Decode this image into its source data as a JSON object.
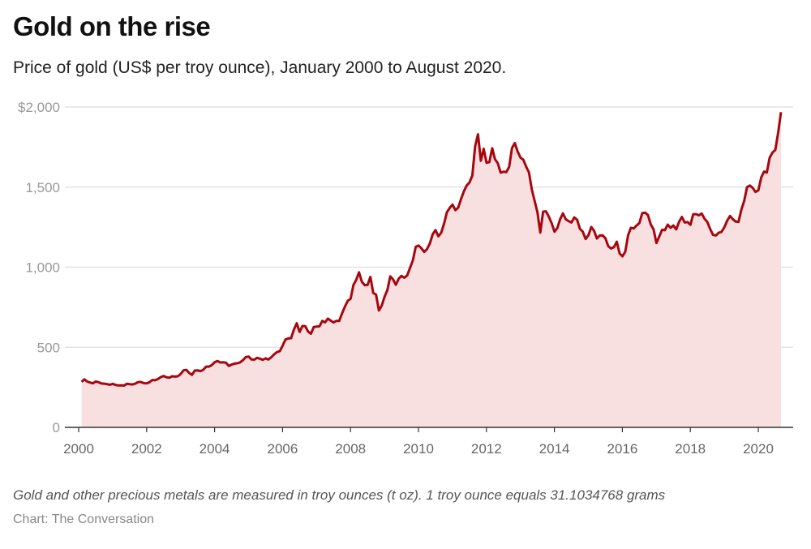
{
  "title": "Gold on the rise",
  "subtitle": "Price of gold (US$ per troy ounce), January 2000 to August 2020.",
  "note": "Gold and other precious metals are measured in troy ounces (t oz). 1 troy ounce equals 31.1034768 grams",
  "source": "Chart: The Conversation",
  "chart_data": {
    "type": "area",
    "title": "Gold on the rise",
    "subtitle": "Price of gold (US$ per troy ounce), January 2000 to August 2020.",
    "xlabel": "",
    "ylabel": "",
    "x_start": "2000-01",
    "x_frequency": "monthly",
    "xlim": [
      2000,
      2020.8
    ],
    "ylim": [
      0,
      2000
    ],
    "x_ticks": [
      "2000",
      "2002",
      "2004",
      "2006",
      "2008",
      "2010",
      "2012",
      "2014",
      "2016",
      "2018",
      "2020"
    ],
    "y_ticks": [
      "0",
      "500",
      "1,000",
      "1,500",
      "$2,000"
    ],
    "y_tick_values": [
      0,
      500,
      1000,
      1500,
      2000
    ],
    "grid": "horizontal",
    "line_color": "#a8060f",
    "fill_color": "#f9e0e0",
    "values": [
      284,
      300,
      286,
      280,
      275,
      286,
      282,
      274,
      273,
      270,
      266,
      272,
      265,
      262,
      263,
      261,
      272,
      270,
      268,
      273,
      283,
      283,
      276,
      275,
      282,
      296,
      294,
      302,
      314,
      321,
      313,
      310,
      319,
      317,
      319,
      333,
      356,
      359,
      340,
      328,
      355,
      356,
      351,
      360,
      379,
      379,
      389,
      407,
      414,
      405,
      406,
      404,
      384,
      392,
      398,
      400,
      406,
      420,
      439,
      442,
      424,
      423,
      434,
      429,
      422,
      431,
      424,
      438,
      456,
      470,
      476,
      510,
      549,
      555,
      557,
      610,
      650,
      596,
      633,
      632,
      598,
      585,
      627,
      629,
      631,
      665,
      655,
      679,
      667,
      655,
      665,
      665,
      712,
      754,
      790,
      803,
      889,
      922,
      968,
      909,
      888,
      889,
      939,
      839,
      829,
      730,
      760,
      816,
      858,
      943,
      924,
      890,
      928,
      946,
      934,
      949,
      996,
      1043,
      1127,
      1135,
      1118,
      1095,
      1113,
      1148,
      1205,
      1232,
      1193,
      1215,
      1271,
      1343,
      1370,
      1391,
      1356,
      1372,
      1424,
      1473,
      1510,
      1529,
      1572,
      1756,
      1830,
      1665,
      1739,
      1652,
      1656,
      1743,
      1675,
      1649,
      1591,
      1596,
      1594,
      1626,
      1744,
      1775,
      1722,
      1684,
      1671,
      1627,
      1593,
      1487,
      1414,
      1343,
      1216,
      1347,
      1349,
      1316,
      1275,
      1222,
      1244,
      1300,
      1336,
      1299,
      1288,
      1279,
      1311,
      1296,
      1239,
      1222,
      1176,
      1200,
      1251,
      1227,
      1179,
      1198,
      1199,
      1181,
      1131,
      1117,
      1125,
      1159,
      1086,
      1068,
      1097,
      1200,
      1246,
      1242,
      1260,
      1276,
      1337,
      1341,
      1326,
      1267,
      1236,
      1151,
      1192,
      1234,
      1231,
      1266,
      1246,
      1260,
      1236,
      1283,
      1314,
      1279,
      1282,
      1265,
      1331,
      1331,
      1324,
      1335,
      1303,
      1282,
      1238,
      1202,
      1198,
      1215,
      1221,
      1250,
      1291,
      1320,
      1300,
      1285,
      1283,
      1359,
      1413,
      1500,
      1510,
      1495,
      1470,
      1480,
      1560,
      1597,
      1591,
      1683,
      1716,
      1732,
      1840,
      1968
    ]
  }
}
